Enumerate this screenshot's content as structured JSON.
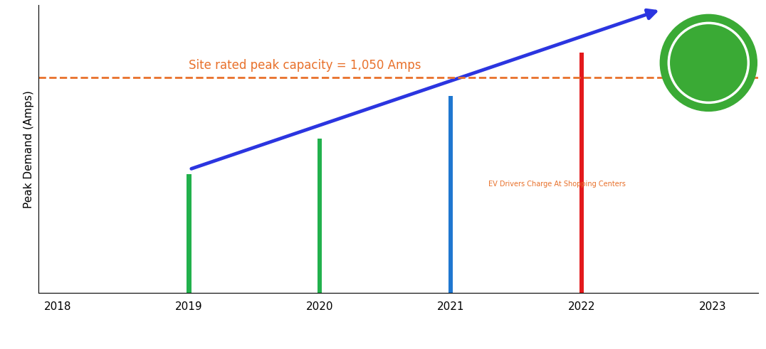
{
  "chart_data": {
    "type": "bar",
    "y_label": "Peak Demand (Amps)",
    "x": [
      2019,
      2020,
      2021,
      2022
    ],
    "values": [
      580,
      750,
      960,
      1170
    ],
    "colors": [
      "#22b14c",
      "#22b14c",
      "#1f77d0",
      "#e31a1c"
    ],
    "xlim": [
      2017.85,
      2023.35
    ],
    "xticks": [
      2018,
      2019,
      2020,
      2021,
      2022,
      2023
    ],
    "ylim": [
      0,
      1400
    ],
    "tick_labels": "x",
    "grid": false,
    "reference_line": {
      "value": 1050,
      "label": "Site rated peak capacity = 1,050 Amps",
      "color": "#e8702a",
      "line_style": "dashed"
    },
    "annotations": [
      "EV Drivers Charge At Shopping Centers"
    ]
  }
}
